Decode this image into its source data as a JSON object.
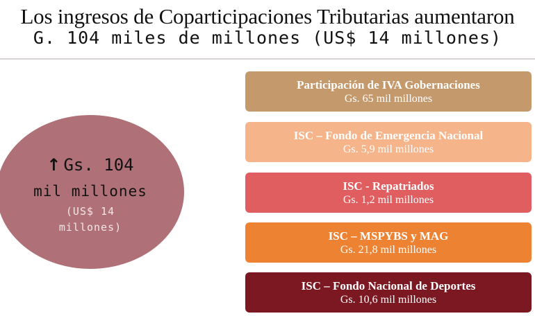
{
  "title": {
    "line1": "Los ingresos de Coparticipaciones Tributarias aumentaron",
    "line2": "G. 104 miles de millones (US$ 14 millones)"
  },
  "summary": {
    "arrow": "↑",
    "amount": "Gs. 104",
    "unit": "mil millones",
    "usd_line1": "(US$ 14",
    "usd_line2": "millones)",
    "color": "#b07078"
  },
  "items": [
    {
      "name": "Participación de IVA Gobernaciones",
      "amount": "Gs. 65 mil millones",
      "color": "#c49a6c"
    },
    {
      "name": "ISC – Fondo de Emergencia Nacional",
      "amount": "Gs. 5,9 mil millones",
      "color": "#f5b48a"
    },
    {
      "name": "ISC - Repatriados",
      "amount": "Gs. 1,2 mil millones",
      "color": "#e05e60"
    },
    {
      "name": "ISC – MSPYBS y MAG",
      "amount": "Gs. 21,8 mil millones",
      "color": "#ee8233"
    },
    {
      "name": "ISC – Fondo Nacional de Deportes",
      "amount": "Gs. 10,6 mil millones",
      "color": "#7c1822"
    }
  ]
}
